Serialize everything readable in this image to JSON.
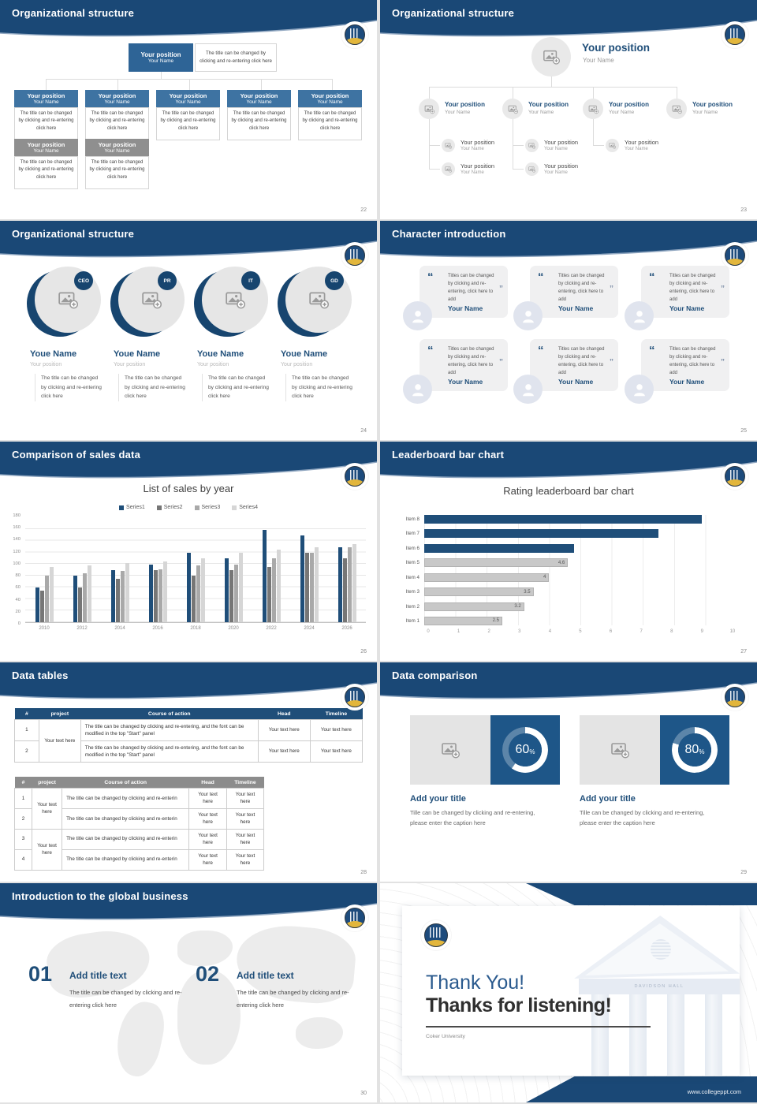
{
  "chart_data": [
    {
      "type": "bar",
      "title": "List of sales by year",
      "categories": [
        "2010",
        "2012",
        "2014",
        "2016",
        "2018",
        "2020",
        "2022",
        "2024",
        "2026"
      ],
      "series": [
        {
          "name": "Series1",
          "color": "#1f4e79",
          "values": [
            60,
            80,
            90,
            100,
            120,
            110,
            160,
            150,
            130
          ]
        },
        {
          "name": "Series2",
          "color": "#767676",
          "values": [
            55,
            60,
            75,
            90,
            80,
            90,
            95,
            120,
            110
          ]
        },
        {
          "name": "Series3",
          "color": "#a9a9a9",
          "values": [
            80,
            85,
            88,
            92,
            98,
            100,
            110,
            120,
            130
          ]
        },
        {
          "name": "Series4",
          "color": "#d6d6d6",
          "values": [
            95,
            98,
            102,
            105,
            110,
            120,
            125,
            130,
            135
          ]
        }
      ],
      "ylim": [
        0,
        180
      ],
      "ytick": 20,
      "grid": true,
      "legend_position": "top"
    },
    {
      "type": "bar",
      "orientation": "horizontal",
      "title": "Rating leaderboard bar chart",
      "categories": [
        "Item 8",
        "Item 7",
        "Item 6",
        "Item 5",
        "Item 4",
        "Item 3",
        "Item 2",
        "Item 1"
      ],
      "values": [
        8.9,
        7.5,
        4.8,
        4.6,
        4,
        3.5,
        3.2,
        2.5
      ],
      "colors": [
        "#1f4e79",
        "#1f4e79",
        "#1f4e79",
        "#c8c8c8",
        "#c8c8c8",
        "#c8c8c8",
        "#c8c8c8",
        "#c8c8c8"
      ],
      "data_labels": [
        null,
        null,
        null,
        "4.6",
        "4",
        "3.5",
        "3.2",
        "2.5"
      ],
      "xlim": [
        0,
        10
      ],
      "xtick": 1,
      "grid": true
    }
  ],
  "slides": [
    {
      "title": "Organizational structure",
      "number": "22",
      "position_label": "Your position",
      "name_label": "Your Name",
      "desc": "The title can be changed by clicking and re-entering click here"
    },
    {
      "title": "Organizational structure",
      "number": "23",
      "position_label": "Your position",
      "name_label": "Your Name"
    },
    {
      "title": "Organizational structure",
      "number": "24",
      "badges": [
        "CEO",
        "PR",
        "IT",
        "GD"
      ],
      "name_label": "Youe Name",
      "position_label": "Your position",
      "desc": "The title can be changed by clicking and re-entering click here"
    },
    {
      "title": "Character introduction",
      "number": "25",
      "open_quote": "“",
      "close_quote": "”",
      "quote": "Titles can be changed by clicking and re-entering, click here to add",
      "name_label": "Your Name"
    },
    {
      "title": "Comparison of sales data",
      "number": "26"
    },
    {
      "title": "Leaderboard bar chart",
      "number": "27"
    },
    {
      "title": "Data tables",
      "number": "28",
      "headers": [
        "#",
        "project",
        "Course of action",
        "Head",
        "Timeline"
      ],
      "table1": {
        "rows": [
          "1",
          "2"
        ],
        "project": "Your text here",
        "course": "The title can be changed by clicking and re-entering, and the font can be modified in the top \"Start\" panel",
        "cell": "Your text here"
      },
      "table2": {
        "rows": [
          "1",
          "2",
          "3",
          "4"
        ],
        "project": "Your text here",
        "course": "The title can be changed by clicking and re-enterin",
        "cell": "Your text here"
      }
    },
    {
      "title": "Data comparison",
      "number": "29",
      "cards": [
        {
          "percent": 60,
          "unit": "%",
          "heading": "Add your title",
          "caption": "Tille can be changed by clicking and re-entering, please enter the caption here"
        },
        {
          "percent": 80,
          "unit": "%",
          "heading": "Add your title",
          "caption": "Tille can be changed by clicking and re-entering, please enter the caption here"
        }
      ]
    },
    {
      "title": "Introduction to the global business",
      "number": "30",
      "items": [
        {
          "num": "01",
          "heading": "Add title text",
          "desc": "The title can be changed by clicking and re-entering click here"
        },
        {
          "num": "02",
          "heading": "Add title text",
          "desc": "The title can be changed by clicking and re-entering click here"
        }
      ]
    },
    {
      "thank_you": "Thank You!",
      "subtitle": "Thanks for listening!",
      "org": "Coker University",
      "building_text": "DAVIDSON HALL",
      "footer_url": "www.collegeppt.com"
    }
  ]
}
